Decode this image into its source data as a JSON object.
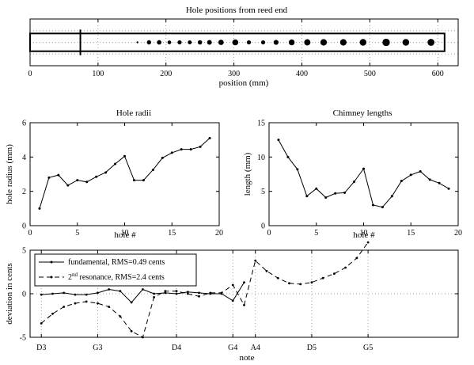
{
  "chart_data": [
    {
      "type": "scatter",
      "title": "Hole positions from reed end",
      "xlabel": "position (mm)",
      "ylabel": "",
      "xlim": [
        0,
        630
      ],
      "ylim": [
        -1,
        1
      ],
      "xticks": [
        0,
        100,
        200,
        300,
        400,
        500,
        600
      ],
      "grid": true,
      "bore_length_mm": 610,
      "register_hole": {
        "x": 74
      },
      "holes": [
        {
          "x": 158,
          "r": 1.0
        },
        {
          "x": 175,
          "r": 2.8
        },
        {
          "x": 190,
          "r": 2.95
        },
        {
          "x": 205,
          "r": 2.35
        },
        {
          "x": 220,
          "r": 2.65
        },
        {
          "x": 235,
          "r": 2.55
        },
        {
          "x": 250,
          "r": 2.85
        },
        {
          "x": 264,
          "r": 3.1
        },
        {
          "x": 281,
          "r": 3.6
        },
        {
          "x": 302,
          "r": 4.05
        },
        {
          "x": 322,
          "r": 2.65
        },
        {
          "x": 343,
          "r": 2.65
        },
        {
          "x": 362,
          "r": 3.25
        },
        {
          "x": 385,
          "r": 3.95
        },
        {
          "x": 408,
          "r": 4.25
        },
        {
          "x": 432,
          "r": 4.45
        },
        {
          "x": 461,
          "r": 4.45
        },
        {
          "x": 490,
          "r": 4.6
        },
        {
          "x": 524,
          "r": 5.1
        },
        {
          "x": 553,
          "r": 4.6
        },
        {
          "x": 590,
          "r": 4.7
        }
      ]
    },
    {
      "type": "line",
      "title": "Hole radii",
      "xlabel": "hole #",
      "ylabel": "hole radius (mm)",
      "xlim": [
        0,
        20
      ],
      "ylim": [
        0,
        6
      ],
      "xticks": [
        0,
        5,
        10,
        15,
        20
      ],
      "yticks": [
        0,
        2,
        4,
        6
      ],
      "x": [
        1,
        2,
        3,
        4,
        5,
        6,
        7,
        8,
        9,
        10,
        11,
        12,
        13,
        14,
        15,
        16,
        17,
        18,
        19
      ],
      "y": [
        1.0,
        2.8,
        2.95,
        2.35,
        2.65,
        2.55,
        2.85,
        3.1,
        3.6,
        4.05,
        2.65,
        2.65,
        3.25,
        3.95,
        4.25,
        4.45,
        4.45,
        4.6,
        5.1
      ]
    },
    {
      "type": "line",
      "title": "Chimney lengths",
      "xlabel": "hole #",
      "ylabel": "length (mm)",
      "xlim": [
        0,
        20
      ],
      "ylim": [
        0,
        15
      ],
      "xticks": [
        0,
        5,
        10,
        15,
        20
      ],
      "yticks": [
        0,
        5,
        10,
        15
      ],
      "x": [
        1,
        2,
        3,
        4,
        5,
        6,
        7,
        8,
        9,
        10,
        11,
        12,
        13,
        14,
        15,
        16,
        17,
        18,
        19
      ],
      "y": [
        12.5,
        10.0,
        8.2,
        4.3,
        5.4,
        4.1,
        4.7,
        4.8,
        6.4,
        8.3,
        3.0,
        2.7,
        4.3,
        6.5,
        7.4,
        7.9,
        6.7,
        6.2,
        5.4
      ]
    },
    {
      "type": "line",
      "title": "",
      "xlabel": "note",
      "ylabel": "deviation in cents",
      "xlim": [
        0,
        38
      ],
      "ylim": [
        -5,
        5
      ],
      "yticks": [
        -5,
        0,
        5
      ],
      "grid": true,
      "note_ticks": [
        {
          "label": "D3",
          "x": 1
        },
        {
          "label": "G3",
          "x": 6
        },
        {
          "label": "D4",
          "x": 13
        },
        {
          "label": "G4",
          "x": 18
        },
        {
          "label": "A4",
          "x": 20
        },
        {
          "label": "D5",
          "x": 25
        },
        {
          "label": "G5",
          "x": 30
        }
      ],
      "legend": "top-left",
      "series": [
        {
          "name": "fundamental, RMS=0.49 cents",
          "style": "solid",
          "x": [
            1,
            2,
            3,
            4,
            5,
            6,
            7,
            8,
            9,
            10,
            11,
            12,
            13,
            14,
            15,
            16,
            17,
            18,
            19
          ],
          "y": [
            -0.1,
            0.0,
            0.1,
            -0.1,
            -0.1,
            0.1,
            0.5,
            0.3,
            -1.0,
            0.5,
            0.0,
            0.1,
            0.0,
            0.2,
            0.1,
            0.0,
            0.0,
            -0.8,
            1.3
          ]
        },
        {
          "name": "2nd resonance, RMS=2.4 cents",
          "style": "dashed",
          "x": [
            1,
            2,
            3,
            4,
            5,
            6,
            7,
            8,
            9,
            10,
            11,
            12,
            13,
            14,
            15,
            16,
            17,
            18,
            19,
            20,
            21,
            22,
            23,
            24,
            25,
            26,
            27,
            28,
            29,
            30
          ],
          "y": [
            -3.4,
            -2.3,
            -1.5,
            -1.1,
            -0.9,
            -1.1,
            -1.5,
            -2.6,
            -4.3,
            -5.0,
            -0.4,
            0.3,
            0.3,
            0.0,
            -0.3,
            0.1,
            0.1,
            1.0,
            -1.3,
            3.8,
            2.6,
            1.8,
            1.2,
            1.1,
            1.3,
            1.8,
            2.3,
            3.0,
            4.1,
            5.9
          ]
        }
      ]
    }
  ]
}
